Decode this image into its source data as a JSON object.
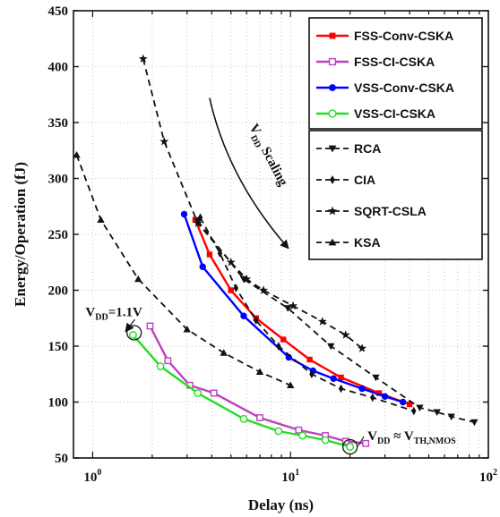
{
  "chart_data": {
    "type": "line",
    "xlabel": "Delay (ns)",
    "ylabel": "Energy/Operation (fJ)",
    "xscale": "log",
    "xlim": [
      0.8,
      100
    ],
    "ylim": [
      50,
      450
    ],
    "x_ticks": [
      {
        "value": 1,
        "base": "10",
        "exp": "0"
      },
      {
        "value": 10,
        "base": "10",
        "exp": "1"
      },
      {
        "value": 100,
        "base": "10",
        "exp": "2"
      }
    ],
    "y_ticks": [
      50,
      100,
      150,
      200,
      250,
      300,
      350,
      400,
      450
    ],
    "grid": true,
    "legend_placement": "top-right",
    "series": [
      {
        "name": "FSS-Conv-CSKA",
        "color": "#ff0000",
        "line": "solid",
        "marker": "square-filled",
        "x": [
          3.3,
          3.9,
          5.0,
          6.7,
          9.2,
          12.5,
          18.0,
          28.0,
          40.0
        ],
        "y": [
          263,
          232,
          200,
          175,
          156,
          138,
          122,
          108,
          98
        ]
      },
      {
        "name": "FSS-CI-CSKA",
        "color": "#bf3fbf",
        "line": "solid",
        "marker": "square-open",
        "x": [
          1.95,
          2.4,
          3.1,
          4.1,
          7.0,
          11.0,
          15.0,
          19.0,
          24.0
        ],
        "y": [
          168,
          137,
          115,
          108,
          86,
          75,
          70,
          65,
          63
        ]
      },
      {
        "name": "VSS-Conv-CSKA",
        "color": "#0000ff",
        "line": "solid",
        "marker": "circle-filled",
        "x": [
          2.9,
          3.6,
          5.8,
          9.8,
          13.0,
          16.5,
          23.0,
          30.0,
          37.0
        ],
        "y": [
          268,
          221,
          177,
          140,
          128,
          121,
          112,
          105,
          100
        ]
      },
      {
        "name": "VSS-CI-CSKA",
        "color": "#22dd22",
        "line": "solid",
        "marker": "circle-open",
        "x": [
          1.6,
          2.2,
          3.4,
          5.8,
          8.7,
          11.5,
          15.0,
          20.0
        ],
        "y": [
          160,
          132,
          108,
          85,
          74,
          70,
          66,
          60
        ]
      },
      {
        "name": "RCA",
        "color": "#111111",
        "line": "dashed",
        "marker": "triangle-down",
        "x": [
          3.4,
          5.8,
          9.7,
          16.0,
          27.0,
          45.0,
          55.0,
          65.0,
          85.0
        ],
        "y": [
          262,
          210,
          184,
          150,
          122,
          95,
          91,
          87,
          82
        ]
      },
      {
        "name": "CIA",
        "color": "#111111",
        "line": "dashed",
        "marker": "diamond",
        "x": [
          3.5,
          4.4,
          5.3,
          6.7,
          8.7,
          12.8,
          18.0,
          26.0,
          42.0
        ],
        "y": [
          265,
          233,
          202,
          173,
          150,
          125,
          112,
          104,
          92
        ]
      },
      {
        "name": "SQRT-CSLA",
        "color": "#111111",
        "line": "dashed",
        "marker": "star",
        "x": [
          1.8,
          2.3,
          3.4,
          5.0,
          6.0,
          7.3,
          10.3,
          14.5,
          19.0,
          23.0
        ],
        "y": [
          407,
          333,
          260,
          225,
          210,
          200,
          186,
          172,
          160,
          148
        ]
      },
      {
        "name": "KSA",
        "color": "#111111",
        "line": "dashed",
        "marker": "triangle-up",
        "x": [
          0.83,
          1.1,
          1.7,
          3.0,
          4.6,
          7.0,
          10.0
        ],
        "y": [
          321,
          263,
          210,
          165,
          144,
          127,
          115
        ]
      }
    ],
    "annotations": [
      {
        "label": "V",
        "sub": "DD",
        "rest": " Scaling",
        "x1": 3.9,
        "y1": 372,
        "x2": 9.7,
        "y2": 238
      },
      {
        "label": "V",
        "sub": "DD",
        "rest": "=1.1V",
        "tx": 0.92,
        "ty": 177,
        "cx": 1.62,
        "cy": 162
      },
      {
        "label": "V",
        "sub": "DD",
        "rest": " ≈ V",
        "sub2": "TH,NMOS",
        "tx": 24.5,
        "ty": 66,
        "cx": 20.0,
        "cy": 60
      }
    ]
  }
}
